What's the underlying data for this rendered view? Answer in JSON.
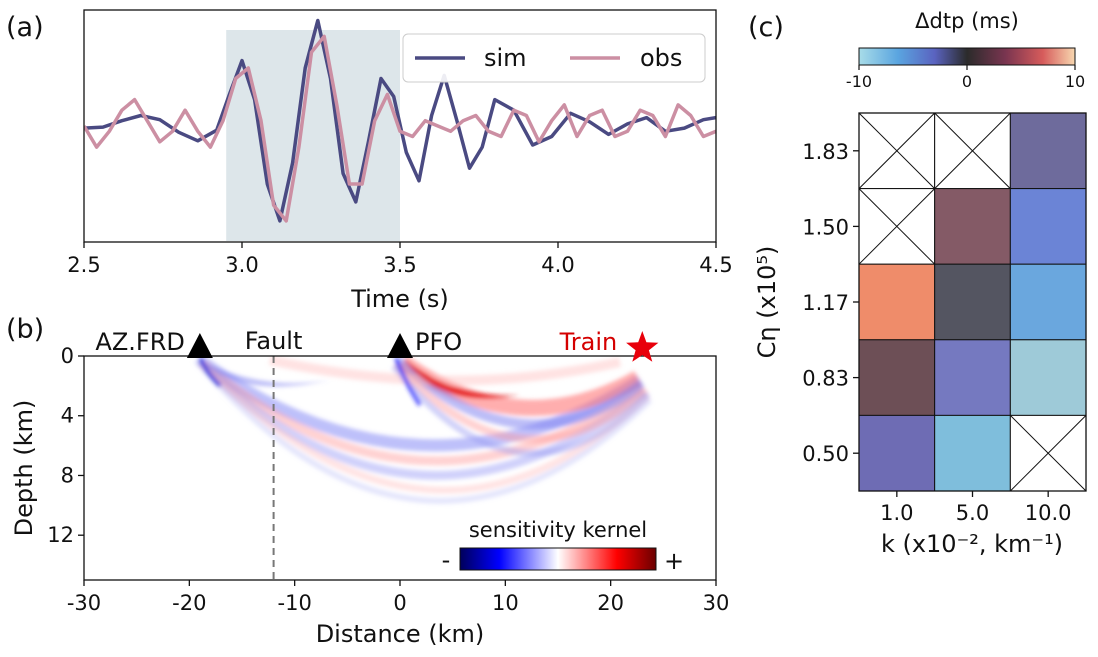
{
  "panels": [
    "(a)",
    "(b)",
    "(c)"
  ],
  "chart_data": [
    {
      "type": "line",
      "panel": "(a)",
      "xlabel": "Time (s)",
      "xlim": [
        2.5,
        4.5
      ],
      "xticks": [
        "2.5",
        "3.0",
        "3.5",
        "4.0",
        "4.5"
      ],
      "ylim": [
        -1.1,
        1.1
      ],
      "highlight_window": [
        2.95,
        3.5
      ],
      "legend": {
        "placement": "top-right",
        "entries": [
          "sim",
          "obs"
        ]
      },
      "series": [
        {
          "name": "sim",
          "color": "#4a4a82",
          "x": [
            2.5,
            2.56,
            2.62,
            2.68,
            2.74,
            2.8,
            2.86,
            2.92,
            2.96,
            3.0,
            3.04,
            3.08,
            3.12,
            3.16,
            3.2,
            3.24,
            3.28,
            3.32,
            3.36,
            3.4,
            3.44,
            3.48,
            3.52,
            3.56,
            3.6,
            3.64,
            3.68,
            3.72,
            3.76,
            3.8,
            3.86,
            3.92,
            3.98,
            4.04,
            4.1,
            4.16,
            4.22,
            4.28,
            4.34,
            4.4,
            4.46,
            4.5
          ],
          "y": [
            -0.02,
            -0.01,
            0.05,
            0.1,
            0.06,
            -0.06,
            -0.14,
            -0.04,
            0.3,
            0.62,
            0.25,
            -0.55,
            -0.9,
            -0.35,
            0.55,
            1.0,
            0.45,
            -0.45,
            -0.72,
            -0.15,
            0.45,
            0.28,
            -0.25,
            -0.52,
            0.1,
            0.48,
            0.05,
            -0.4,
            -0.2,
            0.25,
            0.15,
            -0.18,
            -0.1,
            0.12,
            0.04,
            -0.08,
            0.02,
            0.08,
            -0.05,
            -0.02,
            0.06,
            0.08
          ]
        },
        {
          "name": "obs",
          "color": "#cc8fa3",
          "x": [
            2.5,
            2.54,
            2.58,
            2.62,
            2.66,
            2.7,
            2.74,
            2.78,
            2.82,
            2.86,
            2.9,
            2.94,
            2.98,
            3.02,
            3.06,
            3.1,
            3.14,
            3.18,
            3.22,
            3.26,
            3.3,
            3.34,
            3.38,
            3.42,
            3.46,
            3.5,
            3.54,
            3.58,
            3.62,
            3.66,
            3.7,
            3.74,
            3.78,
            3.82,
            3.86,
            3.9,
            3.94,
            3.98,
            4.02,
            4.06,
            4.1,
            4.14,
            4.18,
            4.22,
            4.26,
            4.3,
            4.34,
            4.38,
            4.42,
            4.46,
            4.5
          ],
          "y": [
            0.0,
            -0.2,
            -0.05,
            0.15,
            0.25,
            0.05,
            -0.15,
            -0.05,
            0.15,
            -0.05,
            -0.2,
            0.05,
            0.45,
            0.55,
            0.05,
            -0.75,
            -0.9,
            -0.2,
            0.7,
            0.85,
            0.2,
            -0.55,
            -0.55,
            0.05,
            0.3,
            -0.05,
            -0.1,
            0.05,
            0.0,
            -0.05,
            0.05,
            0.1,
            -0.05,
            -0.1,
            0.15,
            0.1,
            -0.15,
            0.05,
            0.2,
            -0.1,
            0.1,
            0.15,
            -0.1,
            -0.05,
            0.15,
            0.1,
            -0.1,
            0.2,
            0.1,
            -0.1,
            -0.05
          ]
        }
      ]
    },
    {
      "type": "heatmap",
      "panel": "(b)",
      "xlabel": "Distance (km)",
      "ylabel": "Depth (km)",
      "xlim": [
        -30,
        30
      ],
      "ylim": [
        0,
        15
      ],
      "xticks": [
        "-30",
        "-20",
        "-10",
        "0",
        "10",
        "20",
        "30"
      ],
      "yticks": [
        "0",
        "4",
        "8",
        "12"
      ],
      "stations": [
        {
          "name": "AZ.FRD",
          "x": -19
        },
        {
          "name": "PFO",
          "x": 0
        }
      ],
      "source": {
        "name": "Train",
        "x": 23
      },
      "fault": {
        "name": "Fault",
        "x": -12
      },
      "colorbar": {
        "title": "sensitivity kernel",
        "min_label": "-",
        "max_label": "+"
      }
    },
    {
      "type": "heatmap",
      "panel": "(c)",
      "xlabel": "k (x10⁻², km⁻¹)",
      "ylabel": "Cη (x10⁵)",
      "x_categories": [
        "1.0",
        "5.0",
        "10.0"
      ],
      "y_categories": [
        "1.83",
        "1.50",
        "1.17",
        "0.83",
        "0.50"
      ],
      "colorbar": {
        "title": "Δdtp (ms)",
        "ticks": [
          "-10",
          "0",
          "10"
        ],
        "range": [
          -10,
          10
        ]
      },
      "cells": [
        {
          "row": "1.83",
          "col": "1.0",
          "value": null
        },
        {
          "row": "1.83",
          "col": "5.0",
          "value": null
        },
        {
          "row": "1.83",
          "col": "10.0",
          "value": -3,
          "color": "#6e6b9c"
        },
        {
          "row": "1.50",
          "col": "1.0",
          "value": null
        },
        {
          "row": "1.50",
          "col": "5.0",
          "value": 3,
          "color": "#845a66"
        },
        {
          "row": "1.50",
          "col": "10.0",
          "value": -6,
          "color": "#6b84d6"
        },
        {
          "row": "1.17",
          "col": "1.0",
          "value": 9,
          "color": "#ef8c6a"
        },
        {
          "row": "1.17",
          "col": "5.0",
          "value": 0,
          "color": "#545561"
        },
        {
          "row": "1.17",
          "col": "10.0",
          "value": -8,
          "color": "#6aa7de"
        },
        {
          "row": "0.83",
          "col": "1.0",
          "value": 1,
          "color": "#6d4f56"
        },
        {
          "row": "0.83",
          "col": "5.0",
          "value": -5,
          "color": "#7579c0"
        },
        {
          "row": "0.83",
          "col": "10.0",
          "value": -9,
          "color": "#9ecad8"
        },
        {
          "row": "0.50",
          "col": "1.0",
          "value": -4,
          "color": "#6e6cb4"
        },
        {
          "row": "0.50",
          "col": "5.0",
          "value": -9,
          "color": "#7fbedc"
        },
        {
          "row": "0.50",
          "col": "10.0",
          "value": null
        }
      ]
    }
  ]
}
